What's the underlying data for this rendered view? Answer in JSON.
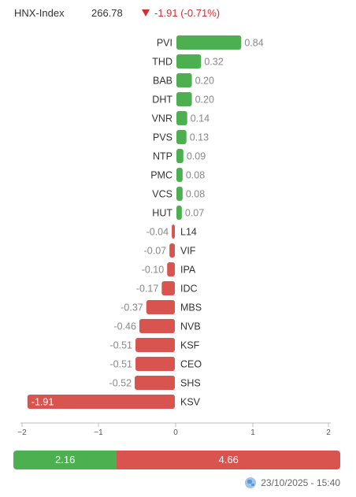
{
  "index": {
    "name": "HNX-Index",
    "price": "266.78",
    "change": "-1.91 (-0.71%)",
    "direction": "down"
  },
  "colors": {
    "positive": "#4caf50",
    "negative": "#d9534f"
  },
  "chart_data": {
    "type": "bar",
    "orientation": "horizontal",
    "categories": [
      "PVI",
      "THD",
      "BAB",
      "DHT",
      "VNR",
      "PVS",
      "NTP",
      "PMC",
      "VCS",
      "HUT",
      "L14",
      "VIF",
      "IPA",
      "IDC",
      "MBS",
      "NVB",
      "KSF",
      "CEO",
      "SHS",
      "KSV"
    ],
    "values": [
      0.84,
      0.32,
      0.2,
      0.2,
      0.14,
      0.13,
      0.09,
      0.08,
      0.08,
      0.07,
      -0.04,
      -0.07,
      -0.1,
      -0.17,
      -0.37,
      -0.46,
      -0.51,
      -0.51,
      -0.52,
      -1.91
    ],
    "labels": [
      "0.84",
      "0.32",
      "0.20",
      "0.20",
      "0.14",
      "0.13",
      "0.09",
      "0.08",
      "0.08",
      "0.07",
      "-0.04",
      "-0.07",
      "-0.10",
      "-0.17",
      "-0.37",
      "-0.46",
      "-0.51",
      "-0.51",
      "-0.52",
      "-1.91"
    ],
    "xlim": [
      -2,
      2
    ],
    "xticks": [
      "−2",
      "−1",
      "0",
      "1",
      "2"
    ],
    "grid": false,
    "legend": false
  },
  "summary": {
    "positive": 2.16,
    "negative": 4.66,
    "positive_label": "2.16",
    "negative_label": "4.66"
  },
  "footer": {
    "timestamp": "23/10/2025 - 15:40"
  }
}
